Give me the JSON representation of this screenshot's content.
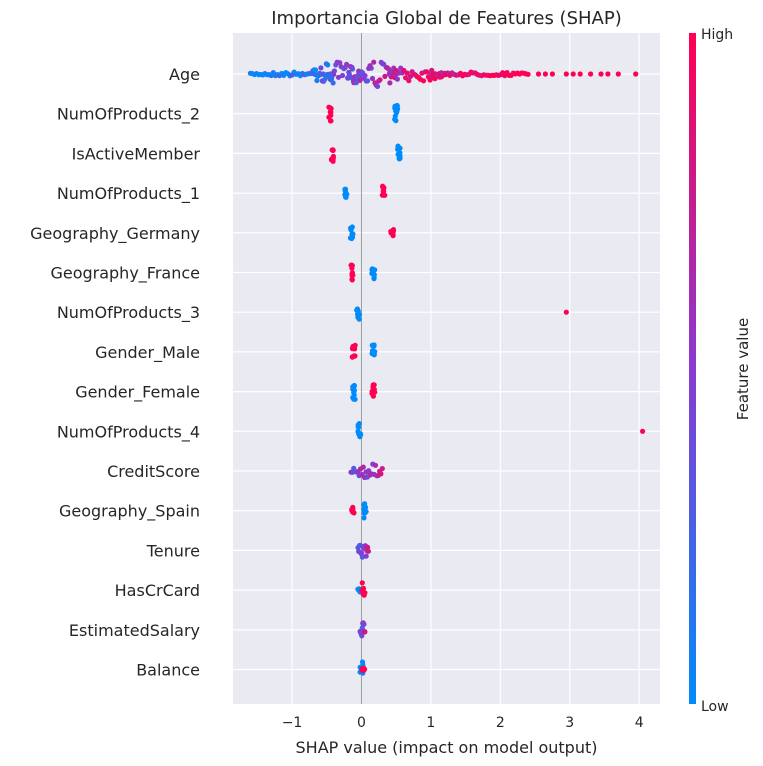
{
  "chart_data": {
    "type": "scatter",
    "subtype": "shap-beeswarm",
    "title": "Importancia Global de Features (SHAP)",
    "xlabel": "SHAP value (impact on model output)",
    "xlim": [
      -1.85,
      4.3
    ],
    "xticks": [
      -1,
      0,
      1,
      2,
      3,
      4
    ],
    "xtick_labels": [
      "−1",
      "0",
      "1",
      "2",
      "3",
      "4"
    ],
    "grid": true,
    "colorbar": {
      "label": "Feature value",
      "high_label": "High",
      "low_label": "Low",
      "low_color": "#008bfb",
      "mid_color": "#8a3ad0",
      "high_color": "#ff0052"
    },
    "features": [
      {
        "name": "Age",
        "min": -1.6,
        "max": 3.95,
        "clusters": [
          {
            "x": -1.6,
            "x2": -0.4,
            "w": 0.15,
            "c": 0.12
          },
          {
            "x": -0.7,
            "x2": 0.0,
            "w": 0.85,
            "c": 0.33
          },
          {
            "x": -0.2,
            "x2": 0.5,
            "w": 1.0,
            "c": 0.55
          },
          {
            "x": 0.4,
            "x2": 1.2,
            "w": 0.55,
            "c": 0.82
          },
          {
            "x": 1.0,
            "x2": 2.4,
            "w": 0.15,
            "c": 0.97
          }
        ],
        "outliers": [
          2.55,
          2.65,
          2.75,
          2.95,
          3.05,
          3.15,
          3.3,
          3.45,
          3.55,
          3.7,
          3.95
        ]
      },
      {
        "name": "NumOfProducts_2",
        "clusters": [
          {
            "x": -0.45,
            "x2": -0.45,
            "w": 0.55,
            "c": 1.0
          },
          {
            "x": 0.5,
            "x2": 0.5,
            "w": 0.6,
            "c": 0.0
          }
        ]
      },
      {
        "name": "IsActiveMember",
        "clusters": [
          {
            "x": -0.42,
            "x2": -0.42,
            "w": 0.6,
            "c": 1.0
          },
          {
            "x": 0.54,
            "x2": 0.54,
            "w": 0.55,
            "c": 0.0
          }
        ]
      },
      {
        "name": "NumOfProducts_1",
        "clusters": [
          {
            "x": -0.23,
            "x2": -0.23,
            "w": 0.55,
            "c": 0.0
          },
          {
            "x": 0.32,
            "x2": 0.32,
            "w": 0.55,
            "c": 1.0
          }
        ]
      },
      {
        "name": "Geography_Germany",
        "clusters": [
          {
            "x": -0.14,
            "x2": -0.14,
            "w": 0.55,
            "c": 0.0
          },
          {
            "x": 0.44,
            "x2": 0.44,
            "w": 0.25,
            "c": 1.0
          }
        ]
      },
      {
        "name": "Geography_France",
        "clusters": [
          {
            "x": -0.14,
            "x2": -0.14,
            "w": 0.55,
            "c": 1.0
          },
          {
            "x": 0.17,
            "x2": 0.17,
            "w": 0.5,
            "c": 0.0
          }
        ]
      },
      {
        "name": "NumOfProducts_3",
        "clusters": [
          {
            "x": -0.05,
            "x2": -0.05,
            "w": 0.55,
            "c": 0.0
          }
        ],
        "outliers": [
          2.95
        ]
      },
      {
        "name": "Gender_Male",
        "clusters": [
          {
            "x": -0.11,
            "x2": -0.11,
            "w": 0.55,
            "c": 1.0
          },
          {
            "x": 0.17,
            "x2": 0.17,
            "w": 0.5,
            "c": 0.0
          }
        ]
      },
      {
        "name": "Gender_Female",
        "clusters": [
          {
            "x": -0.11,
            "x2": -0.11,
            "w": 0.55,
            "c": 0.0
          },
          {
            "x": 0.17,
            "x2": 0.17,
            "w": 0.5,
            "c": 1.0
          }
        ]
      },
      {
        "name": "NumOfProducts_4",
        "clusters": [
          {
            "x": -0.03,
            "x2": -0.03,
            "w": 0.55,
            "c": 0.0
          }
        ],
        "outliers": [
          4.05
        ]
      },
      {
        "name": "CreditScore",
        "clusters": [
          {
            "x": -0.15,
            "x2": 0.3,
            "w": 0.55,
            "c": 0.5
          }
        ]
      },
      {
        "name": "Geography_Spain",
        "clusters": [
          {
            "x": -0.12,
            "x2": -0.12,
            "w": 0.25,
            "c": 1.0
          },
          {
            "x": 0.05,
            "x2": 0.05,
            "w": 0.55,
            "c": 0.0
          }
        ]
      },
      {
        "name": "Tenure",
        "clusters": [
          {
            "x": -0.05,
            "x2": 0.1,
            "w": 0.55,
            "c": 0.5
          }
        ]
      },
      {
        "name": "HasCrCard",
        "clusters": [
          {
            "x": -0.03,
            "x2": -0.03,
            "w": 0.2,
            "c": 0.0
          },
          {
            "x": 0.03,
            "x2": 0.03,
            "w": 0.55,
            "c": 1.0
          }
        ]
      },
      {
        "name": "EstimatedSalary",
        "clusters": [
          {
            "x": -0.02,
            "x2": 0.05,
            "w": 0.55,
            "c": 0.5
          }
        ]
      },
      {
        "name": "Balance",
        "clusters": [
          {
            "x": 0.0,
            "x2": 0.0,
            "w": 0.55,
            "c": 0.0
          },
          {
            "x": 0.03,
            "x2": 0.03,
            "w": 0.1,
            "c": 1.0
          }
        ]
      }
    ]
  }
}
